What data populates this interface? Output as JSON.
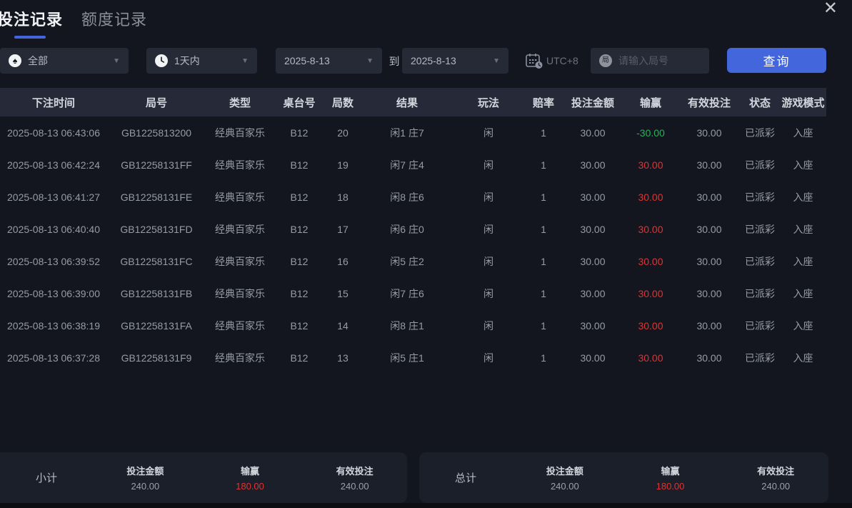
{
  "tabs": [
    {
      "label": "投注记录",
      "active": true
    },
    {
      "label": "额度记录",
      "active": false
    }
  ],
  "icons": {
    "close": "✕",
    "chevron": "▼",
    "spade": "♠"
  },
  "filters": {
    "category": {
      "value": "全部"
    },
    "range": {
      "value": "1天内"
    },
    "date_from": "2025-8-13",
    "to_label": "到",
    "date_to": "2025-8-13",
    "timezone": "UTC+8",
    "search": {
      "placeholder": "请输入局号",
      "icon_char": "局"
    },
    "query_button": "查询"
  },
  "table": {
    "columns": [
      "下注时间",
      "局号",
      "类型",
      "桌台号",
      "局数",
      "结果",
      "玩法",
      "赔率",
      "投注金额",
      "输赢",
      "有效投注",
      "状态",
      "游戏模式"
    ],
    "rows": [
      {
        "time": "2025-08-13 06:43:06",
        "round_id": "GB1225813200",
        "type": "经典百家乐",
        "table_no": "B12",
        "round": "20",
        "result": "闲1 庄7",
        "play": "闲",
        "odds": "1",
        "bet": "30.00",
        "win_loss": "-30.00",
        "win_loss_color": "cell-green",
        "valid_bet": "30.00",
        "status": "已派彩",
        "mode": "入座"
      },
      {
        "time": "2025-08-13 06:42:24",
        "round_id": "GB12258131FF",
        "type": "经典百家乐",
        "table_no": "B12",
        "round": "19",
        "result": "闲7 庄4",
        "play": "闲",
        "odds": "1",
        "bet": "30.00",
        "win_loss": "30.00",
        "win_loss_color": "cell-red",
        "valid_bet": "30.00",
        "status": "已派彩",
        "mode": "入座"
      },
      {
        "time": "2025-08-13 06:41:27",
        "round_id": "GB12258131FE",
        "type": "经典百家乐",
        "table_no": "B12",
        "round": "18",
        "result": "闲8 庄6",
        "play": "闲",
        "odds": "1",
        "bet": "30.00",
        "win_loss": "30.00",
        "win_loss_color": "cell-red",
        "valid_bet": "30.00",
        "status": "已派彩",
        "mode": "入座"
      },
      {
        "time": "2025-08-13 06:40:40",
        "round_id": "GB12258131FD",
        "type": "经典百家乐",
        "table_no": "B12",
        "round": "17",
        "result": "闲6 庄0",
        "play": "闲",
        "odds": "1",
        "bet": "30.00",
        "win_loss": "30.00",
        "win_loss_color": "cell-red",
        "valid_bet": "30.00",
        "status": "已派彩",
        "mode": "入座"
      },
      {
        "time": "2025-08-13 06:39:52",
        "round_id": "GB12258131FC",
        "type": "经典百家乐",
        "table_no": "B12",
        "round": "16",
        "result": "闲5 庄2",
        "play": "闲",
        "odds": "1",
        "bet": "30.00",
        "win_loss": "30.00",
        "win_loss_color": "cell-red",
        "valid_bet": "30.00",
        "status": "已派彩",
        "mode": "入座"
      },
      {
        "time": "2025-08-13 06:39:00",
        "round_id": "GB12258131FB",
        "type": "经典百家乐",
        "table_no": "B12",
        "round": "15",
        "result": "闲7 庄6",
        "play": "闲",
        "odds": "1",
        "bet": "30.00",
        "win_loss": "30.00",
        "win_loss_color": "cell-red",
        "valid_bet": "30.00",
        "status": "已派彩",
        "mode": "入座"
      },
      {
        "time": "2025-08-13 06:38:19",
        "round_id": "GB12258131FA",
        "type": "经典百家乐",
        "table_no": "B12",
        "round": "14",
        "result": "闲8 庄1",
        "play": "闲",
        "odds": "1",
        "bet": "30.00",
        "win_loss": "30.00",
        "win_loss_color": "cell-red",
        "valid_bet": "30.00",
        "status": "已派彩",
        "mode": "入座"
      },
      {
        "time": "2025-08-13 06:37:28",
        "round_id": "GB12258131F9",
        "type": "经典百家乐",
        "table_no": "B12",
        "round": "13",
        "result": "闲5 庄1",
        "play": "闲",
        "odds": "1",
        "bet": "30.00",
        "win_loss": "30.00",
        "win_loss_color": "cell-red",
        "valid_bet": "30.00",
        "status": "已派彩",
        "mode": "入座"
      }
    ]
  },
  "summary": {
    "subtotal": {
      "label": "小计",
      "items": [
        {
          "label": "投注金额",
          "value": "240.00"
        },
        {
          "label": "输赢",
          "value": "180.00"
        },
        {
          "label": "有效投注",
          "value": "240.00"
        }
      ]
    },
    "total": {
      "label": "总计",
      "items": [
        {
          "label": "投注金额",
          "value": "240.00"
        },
        {
          "label": "输赢",
          "value": "180.00"
        },
        {
          "label": "有效投注",
          "value": "240.00"
        }
      ]
    }
  },
  "colors": {
    "accent": "#4466dd",
    "red": "#e03333",
    "green": "#21b35b"
  }
}
